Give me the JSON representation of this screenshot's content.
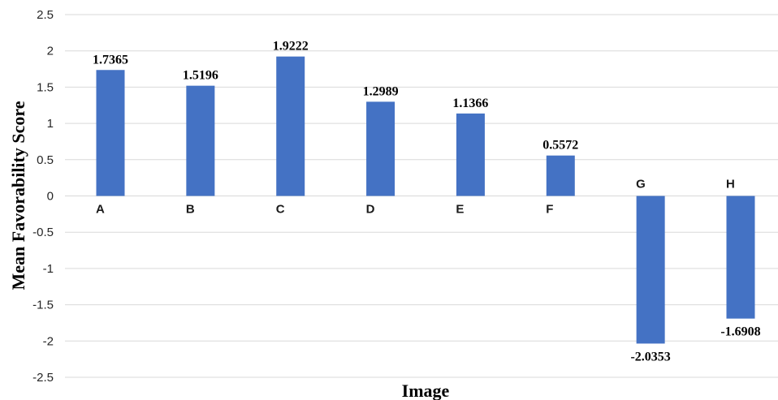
{
  "chart_data": {
    "type": "bar",
    "categories": [
      "A",
      "B",
      "C",
      "D",
      "E",
      "F",
      "G",
      "H"
    ],
    "values": [
      1.7365,
      1.5196,
      1.9222,
      1.2989,
      1.1366,
      0.5572,
      -2.0353,
      -1.6908
    ],
    "data_labels": [
      "1.7365",
      "1.5196",
      "1.9222",
      "1.2989",
      "1.1366",
      "0.5572",
      "-2.0353",
      "-1.6908"
    ],
    "title": "",
    "xlabel": "Image",
    "ylabel": "Mean Favorability Score",
    "ylim": [
      -2.5,
      2.5
    ],
    "yticks": [
      2.5,
      2,
      1.5,
      1,
      0.5,
      0,
      -0.5,
      -1,
      -1.5,
      -2,
      -2.5
    ],
    "ytick_labels": [
      "2.5",
      "2",
      "1.5",
      "1",
      "0.5",
      "0",
      "-0.5",
      "-1",
      "-1.5",
      "-2",
      "-2.5"
    ],
    "grid": true,
    "legend": "none",
    "bar_color": "#4472C4"
  }
}
